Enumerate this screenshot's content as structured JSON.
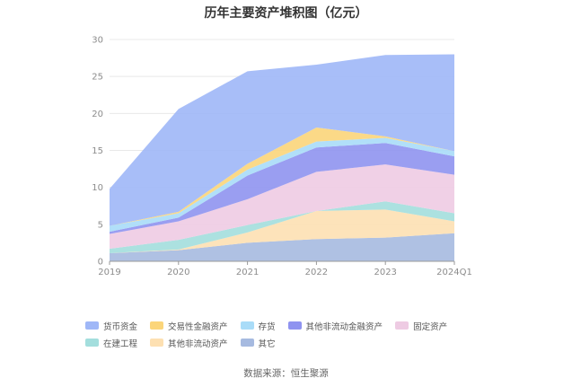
{
  "chart_data": {
    "type": "area",
    "stacked": true,
    "title": "历年主要资产堆积图（亿元）",
    "x": [
      "2019",
      "2020",
      "2021",
      "2022",
      "2023",
      "2024Q1"
    ],
    "yticks": [
      "0",
      "5",
      "10",
      "15",
      "20",
      "25",
      "30"
    ],
    "ylim": [
      0,
      30
    ],
    "grid": true,
    "legend_position": "bottom",
    "series": [
      {
        "name": "货币资金",
        "color": "#9fb7f7",
        "values": [
          5.0,
          13.9,
          12.5,
          8.5,
          11.0,
          13.1
        ]
      },
      {
        "name": "交易性金融资产",
        "color": "#fbd57a",
        "values": [
          0.0,
          0.2,
          0.8,
          1.9,
          0.2,
          0.0
        ]
      },
      {
        "name": "存货",
        "color": "#a9dcf8",
        "values": [
          0.8,
          0.6,
          0.8,
          0.8,
          0.7,
          0.7
        ]
      },
      {
        "name": "其他非流动金融资产",
        "color": "#8f93f0",
        "values": [
          0.3,
          0.5,
          3.2,
          3.3,
          2.9,
          2.5
        ]
      },
      {
        "name": "固定资产",
        "color": "#eecbe3",
        "values": [
          2.0,
          2.5,
          3.5,
          5.3,
          5.0,
          5.2
        ]
      },
      {
        "name": "在建工程",
        "color": "#a3dedd",
        "values": [
          0.6,
          1.3,
          1.0,
          0.0,
          1.1,
          1.1
        ]
      },
      {
        "name": "其他非流动资产",
        "color": "#fde0b2",
        "values": [
          0.0,
          0.1,
          1.4,
          3.8,
          3.8,
          1.6
        ]
      },
      {
        "name": "其它",
        "color": "#a6bae0",
        "values": [
          1.1,
          1.5,
          2.5,
          3.0,
          3.2,
          3.8
        ]
      }
    ],
    "source": "数据来源：恒生聚源"
  }
}
